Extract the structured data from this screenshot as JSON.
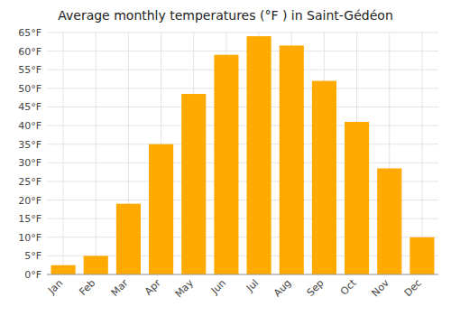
{
  "chart_data": {
    "type": "bar",
    "title": "Average monthly temperatures (°F ) in Saint-Gédéon",
    "categories": [
      "Jan",
      "Feb",
      "Mar",
      "Apr",
      "May",
      "Jun",
      "Jul",
      "Aug",
      "Sep",
      "Oct",
      "Nov",
      "Dec"
    ],
    "values": [
      2.5,
      5,
      19,
      35,
      48.5,
      59,
      64,
      61.5,
      52,
      41,
      28.5,
      10
    ],
    "color": "#FFAA00",
    "ylim": [
      0,
      65
    ],
    "yticks": [
      {
        "value": 0,
        "label": "0°F"
      },
      {
        "value": 5,
        "label": "5°F"
      },
      {
        "value": 10,
        "label": "10°F"
      },
      {
        "value": 15,
        "label": "15°F"
      },
      {
        "value": 20,
        "label": "20°F"
      },
      {
        "value": 25,
        "label": "25°F"
      },
      {
        "value": 30,
        "label": "30°F"
      },
      {
        "value": 35,
        "label": "35°F"
      },
      {
        "value": 40,
        "label": "40°F"
      },
      {
        "value": 45,
        "label": "45°F"
      },
      {
        "value": 50,
        "label": "50°F"
      },
      {
        "value": 55,
        "label": "55°F"
      },
      {
        "value": 60,
        "label": "60°F"
      },
      {
        "value": 65,
        "label": "65°F"
      }
    ],
    "grid": true
  }
}
